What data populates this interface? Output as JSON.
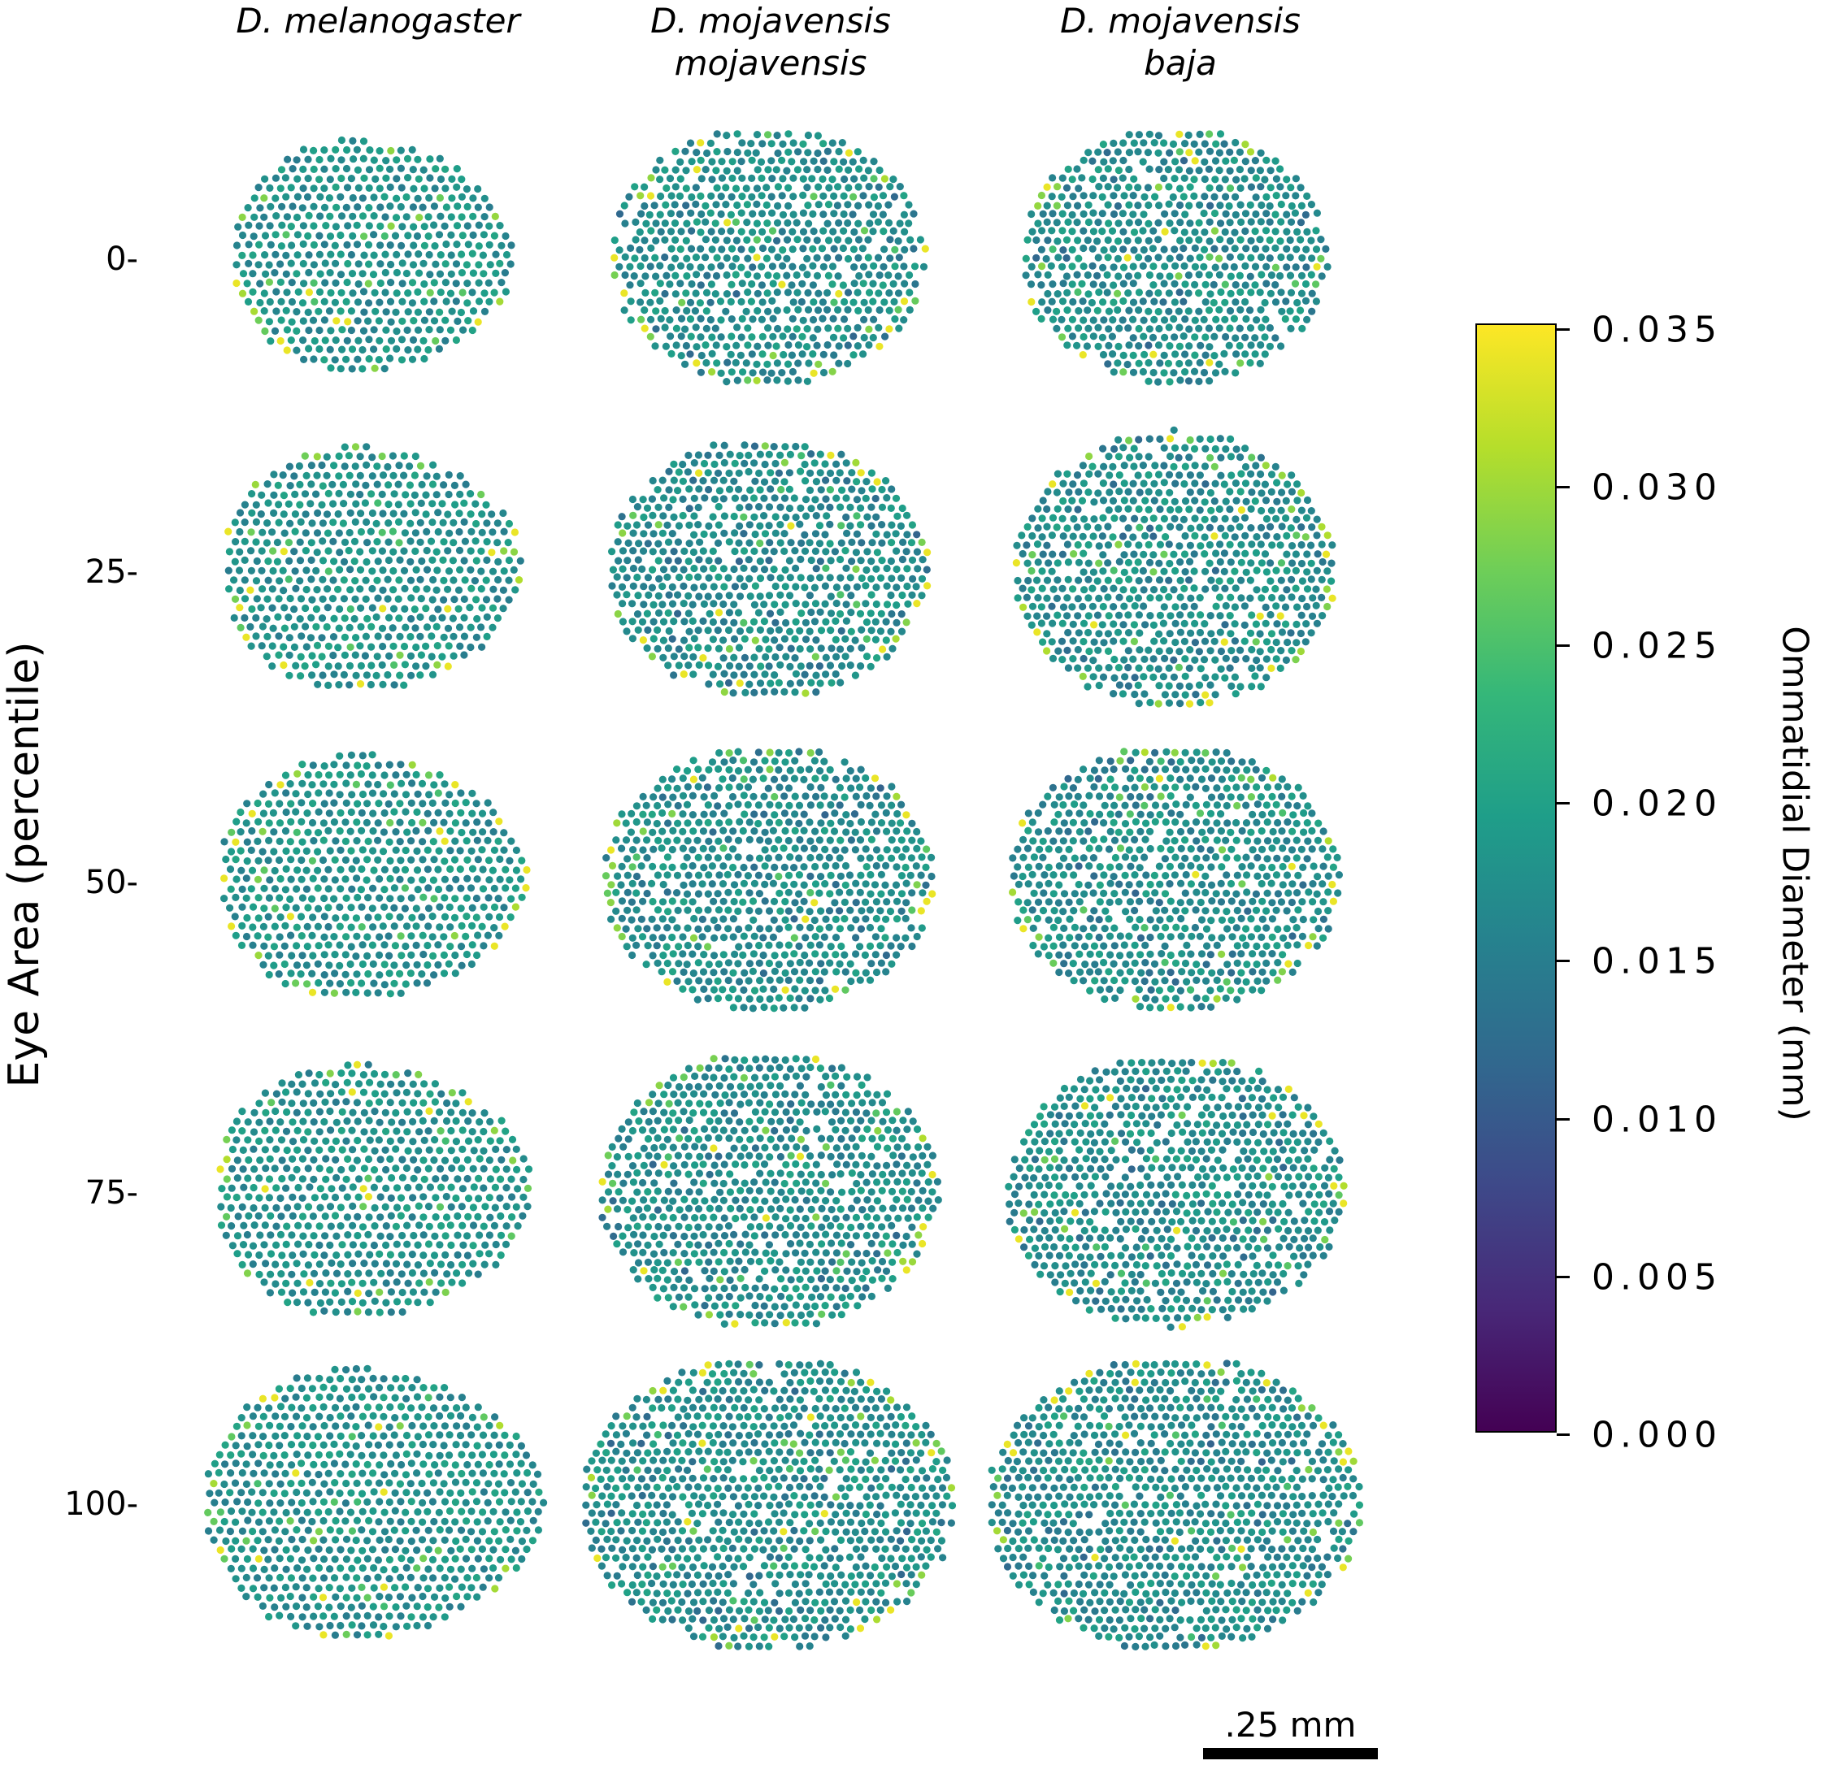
{
  "chart_data": {
    "type": "scatter",
    "description_title": "",
    "columns": [
      "D. melanogaster",
      "D. mojavensis mojavensis",
      "D. mojavensis baja"
    ],
    "column_titles": [
      [
        "D. melanogaster"
      ],
      [
        "D. mojavensis",
        "mojavensis"
      ],
      [
        "D. mojavensis",
        "baja"
      ]
    ],
    "rows": [
      "0-",
      "25-",
      "50-",
      "75-",
      "100-"
    ],
    "ylabel": "Eye Area (percentile)",
    "colorbar": {
      "label": "Ommatidial Diameter (mm)",
      "ticks": [
        "0.035",
        "0.030",
        "0.025",
        "0.020",
        "0.015",
        "0.010",
        "0.005",
        "0.000"
      ],
      "range": [
        0.0,
        0.035
      ],
      "colormap": [
        "#440154",
        "#482878",
        "#3e4989",
        "#31688e",
        "#26828e",
        "#1f9e89",
        "#35b779",
        "#6ece58",
        "#b5de2b",
        "#fde725"
      ]
    },
    "scale_bar": ".25 mm",
    "typical_diameter_mm": 0.0175,
    "outlier_diameter_mm": 0.034
  }
}
